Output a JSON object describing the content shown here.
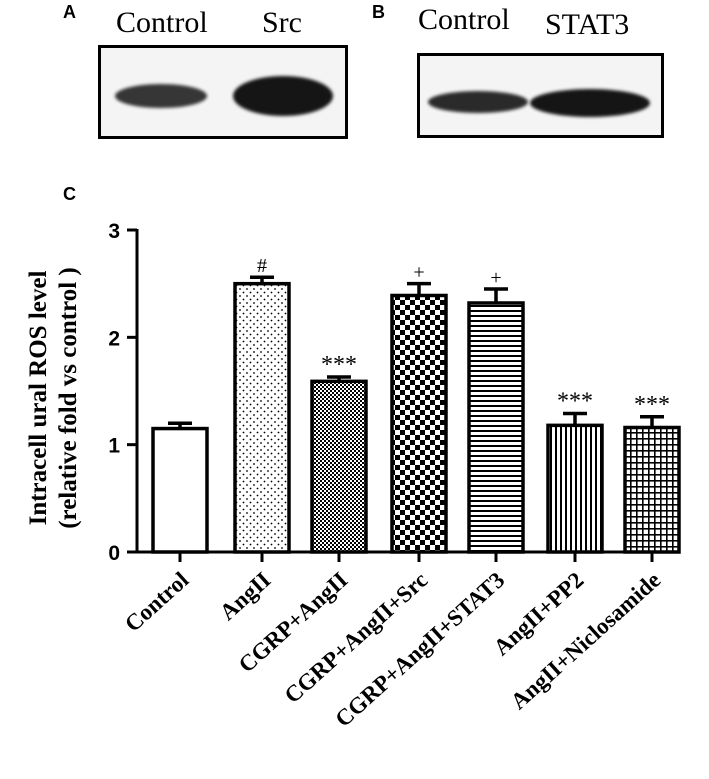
{
  "panels": {
    "a": {
      "letter": "A",
      "lanes": [
        "Control",
        "Src"
      ]
    },
    "b": {
      "letter": "B",
      "lanes": [
        "Control",
        "STAT3"
      ]
    },
    "c": {
      "letter": "C"
    }
  },
  "chart_data": {
    "type": "bar",
    "ylabel_line1": "Intracell ural ROS level",
    "ylabel_line2": "(relative fold vs control )",
    "ylim": [
      0,
      3
    ],
    "yticks": [
      "0",
      "1",
      "2",
      "3"
    ],
    "categories": [
      "Control",
      "AngII",
      "CGRP+AngII",
      "CGRP+AngII+Src",
      "CGRP+AngII+STAT3",
      "AngII+PP2",
      "AngII+Niclosamide"
    ],
    "values": [
      1.15,
      2.5,
      1.59,
      2.39,
      2.32,
      1.18,
      1.16
    ],
    "errors": [
      0.05,
      0.06,
      0.04,
      0.11,
      0.13,
      0.11,
      0.1
    ],
    "annotations": [
      "",
      "#",
      "***",
      "+",
      "+",
      "***",
      "***"
    ],
    "patterns": [
      "none",
      "dots",
      "fine-check",
      "checker",
      "hlines",
      "vlines",
      "grid"
    ],
    "grid": false
  }
}
